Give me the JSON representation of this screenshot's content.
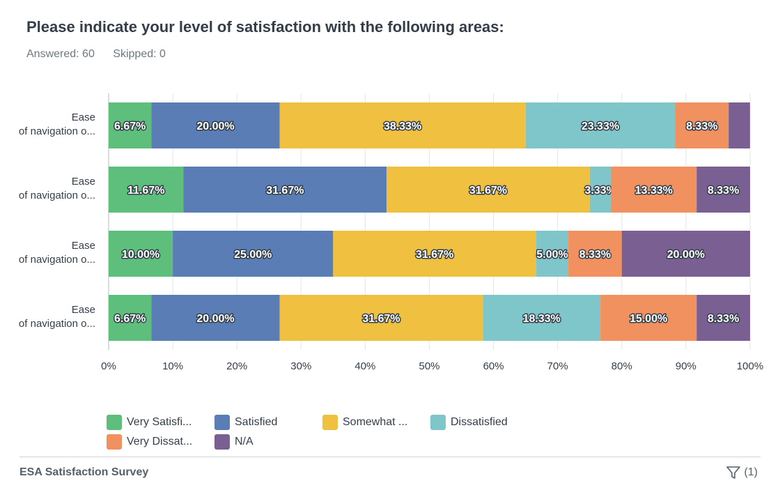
{
  "question": {
    "title": "Please indicate your level of satisfaction with the following areas:",
    "answered": "Answered: 60",
    "skipped": "Skipped: 0"
  },
  "chart_data": {
    "type": "bar",
    "orientation": "horizontal",
    "stacked": true,
    "categories": [
      "Ease of navigation o...",
      "Ease of navigation o...",
      "Ease of navigation o...",
      "Ease of navigation o..."
    ],
    "series": [
      {
        "name": "Very Satisfi...",
        "color": "#5dbf7b",
        "values": [
          6.67,
          11.67,
          10.0,
          6.67
        ]
      },
      {
        "name": "Satisfied",
        "color": "#5a7db5",
        "values": [
          20.0,
          31.67,
          25.0,
          20.0
        ]
      },
      {
        "name": "Somewhat ...",
        "color": "#f0c040",
        "values": [
          38.33,
          31.67,
          31.67,
          31.67
        ]
      },
      {
        "name": "Dissatisfied",
        "color": "#7fc6cb",
        "values": [
          23.33,
          3.33,
          5.0,
          18.33
        ]
      },
      {
        "name": "Very Dissat...",
        "color": "#f0915f",
        "values": [
          8.33,
          13.33,
          8.33,
          15.0
        ]
      },
      {
        "name": "N/A",
        "color": "#7a5f92",
        "values": [
          3.33,
          8.33,
          20.0,
          8.33
        ]
      }
    ],
    "data_labels": [
      [
        "6.67%",
        "20.00%",
        "38.33%",
        "23.33%",
        "8.33%",
        ""
      ],
      [
        "11.67%",
        "31.67%",
        "31.67%",
        "3.33%",
        "13.33%",
        "8.33%"
      ],
      [
        "10.00%",
        "25.00%",
        "31.67%",
        "5.00%",
        "8.33%",
        "20.00%"
      ],
      [
        "6.67%",
        "20.00%",
        "31.67%",
        "18.33%",
        "15.00%",
        "8.33%"
      ]
    ],
    "x_ticks": [
      "0%",
      "10%",
      "20%",
      "30%",
      "40%",
      "50%",
      "60%",
      "70%",
      "80%",
      "90%",
      "100%"
    ],
    "xlim": [
      0,
      100
    ],
    "grid": true,
    "legend_position": "bottom"
  },
  "legend": {
    "items": [
      {
        "label": "Very Satisfi...",
        "color": "#5dbf7b"
      },
      {
        "label": "Satisfied",
        "color": "#5a7db5"
      },
      {
        "label": "Somewhat ...",
        "color": "#f0c040"
      },
      {
        "label": "Dissatisfied",
        "color": "#7fc6cb"
      },
      {
        "label": "Very Dissat...",
        "color": "#f0915f"
      },
      {
        "label": "N/A",
        "color": "#7a5f92"
      }
    ]
  },
  "footer": {
    "survey_name": "ESA Satisfaction Survey",
    "filter_count": "(1)",
    "filter_icon": "filter-funnel-icon"
  }
}
